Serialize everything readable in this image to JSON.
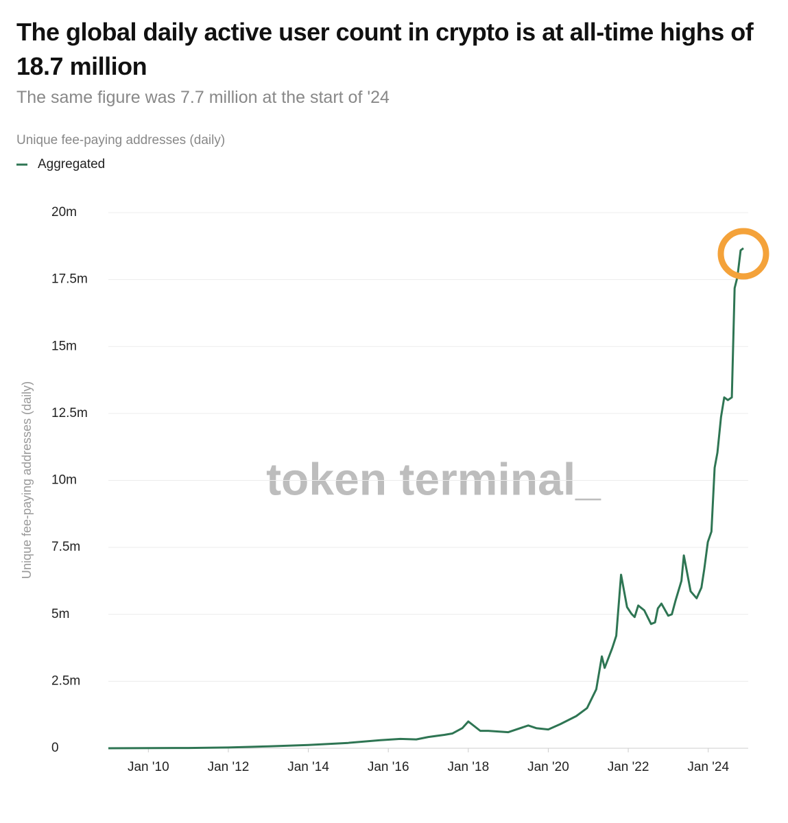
{
  "chart_data": {
    "type": "line",
    "title": "The global daily active user count in crypto is at all-time highs of 18.7 million",
    "subtitle": "The same figure was 7.7 million at the start of '24",
    "legend_title": "Unique fee-paying addresses (daily)",
    "ylabel": "Unique fee-paying addresses (daily)",
    "watermark": "token terminal_",
    "grid": true,
    "legend_position": "top-left",
    "xlim": [
      2009,
      2025
    ],
    "xticks": [
      {
        "value": 2010,
        "label": "Jan '10"
      },
      {
        "value": 2012,
        "label": "Jan '12"
      },
      {
        "value": 2014,
        "label": "Jan '14"
      },
      {
        "value": 2016,
        "label": "Jan '16"
      },
      {
        "value": 2018,
        "label": "Jan '18"
      },
      {
        "value": 2020,
        "label": "Jan '20"
      },
      {
        "value": 2022,
        "label": "Jan '22"
      },
      {
        "value": 2024,
        "label": "Jan '24"
      }
    ],
    "ylim": [
      0,
      20
    ],
    "yticks": [
      0,
      {
        "value": 2.5,
        "label": "2.5m"
      },
      {
        "value": 5,
        "label": "5m"
      },
      {
        "value": 7.5,
        "label": "7.5m"
      },
      {
        "value": 10,
        "label": "10m"
      },
      {
        "value": 12.5,
        "label": "12.5m"
      },
      {
        "value": 15,
        "label": "15m"
      },
      {
        "value": 17.5,
        "label": "17.5m"
      },
      {
        "value": 20,
        "label": "20m"
      }
    ],
    "x": [
      2009.0,
      2011.0,
      2012.0,
      2013.0,
      2014.0,
      2015.0,
      2015.8,
      2016.3,
      2016.7,
      2017.0,
      2017.4,
      2017.6,
      2017.85,
      2018.0,
      2018.3,
      2018.5,
      2019.0,
      2019.5,
      2019.7,
      2020.0,
      2020.3,
      2020.7,
      2020.97,
      2021.2,
      2021.34,
      2021.41,
      2021.6,
      2021.7,
      2021.82,
      2021.97,
      2022.08,
      2022.16,
      2022.25,
      2022.4,
      2022.57,
      2022.67,
      2022.74,
      2022.83,
      2023.0,
      2023.09,
      2023.18,
      2023.33,
      2023.39,
      2023.56,
      2023.71,
      2023.83,
      2023.9,
      2023.99,
      2024.08,
      2024.16,
      2024.23,
      2024.32,
      2024.4,
      2024.49,
      2024.59,
      2024.66,
      2024.73,
      2024.81,
      2024.88
    ],
    "series": [
      {
        "name": "Aggregated",
        "color": "#2e7553",
        "values": [
          0,
          0.01,
          0.03,
          0.07,
          0.12,
          0.2,
          0.3,
          0.35,
          0.33,
          0.42,
          0.5,
          0.55,
          0.75,
          1.0,
          0.65,
          0.65,
          0.6,
          0.85,
          0.75,
          0.7,
          0.9,
          1.2,
          1.5,
          2.2,
          3.43,
          3.0,
          3.74,
          4.2,
          6.48,
          5.27,
          5.02,
          4.9,
          5.33,
          5.15,
          4.64,
          4.7,
          5.22,
          5.4,
          4.95,
          5.0,
          5.5,
          6.25,
          7.2,
          5.86,
          5.6,
          6.0,
          6.68,
          7.7,
          8.09,
          10.47,
          11.04,
          12.37,
          13.1,
          13.0,
          13.1,
          17.18,
          17.6,
          18.59,
          18.67
        ]
      }
    ]
  }
}
